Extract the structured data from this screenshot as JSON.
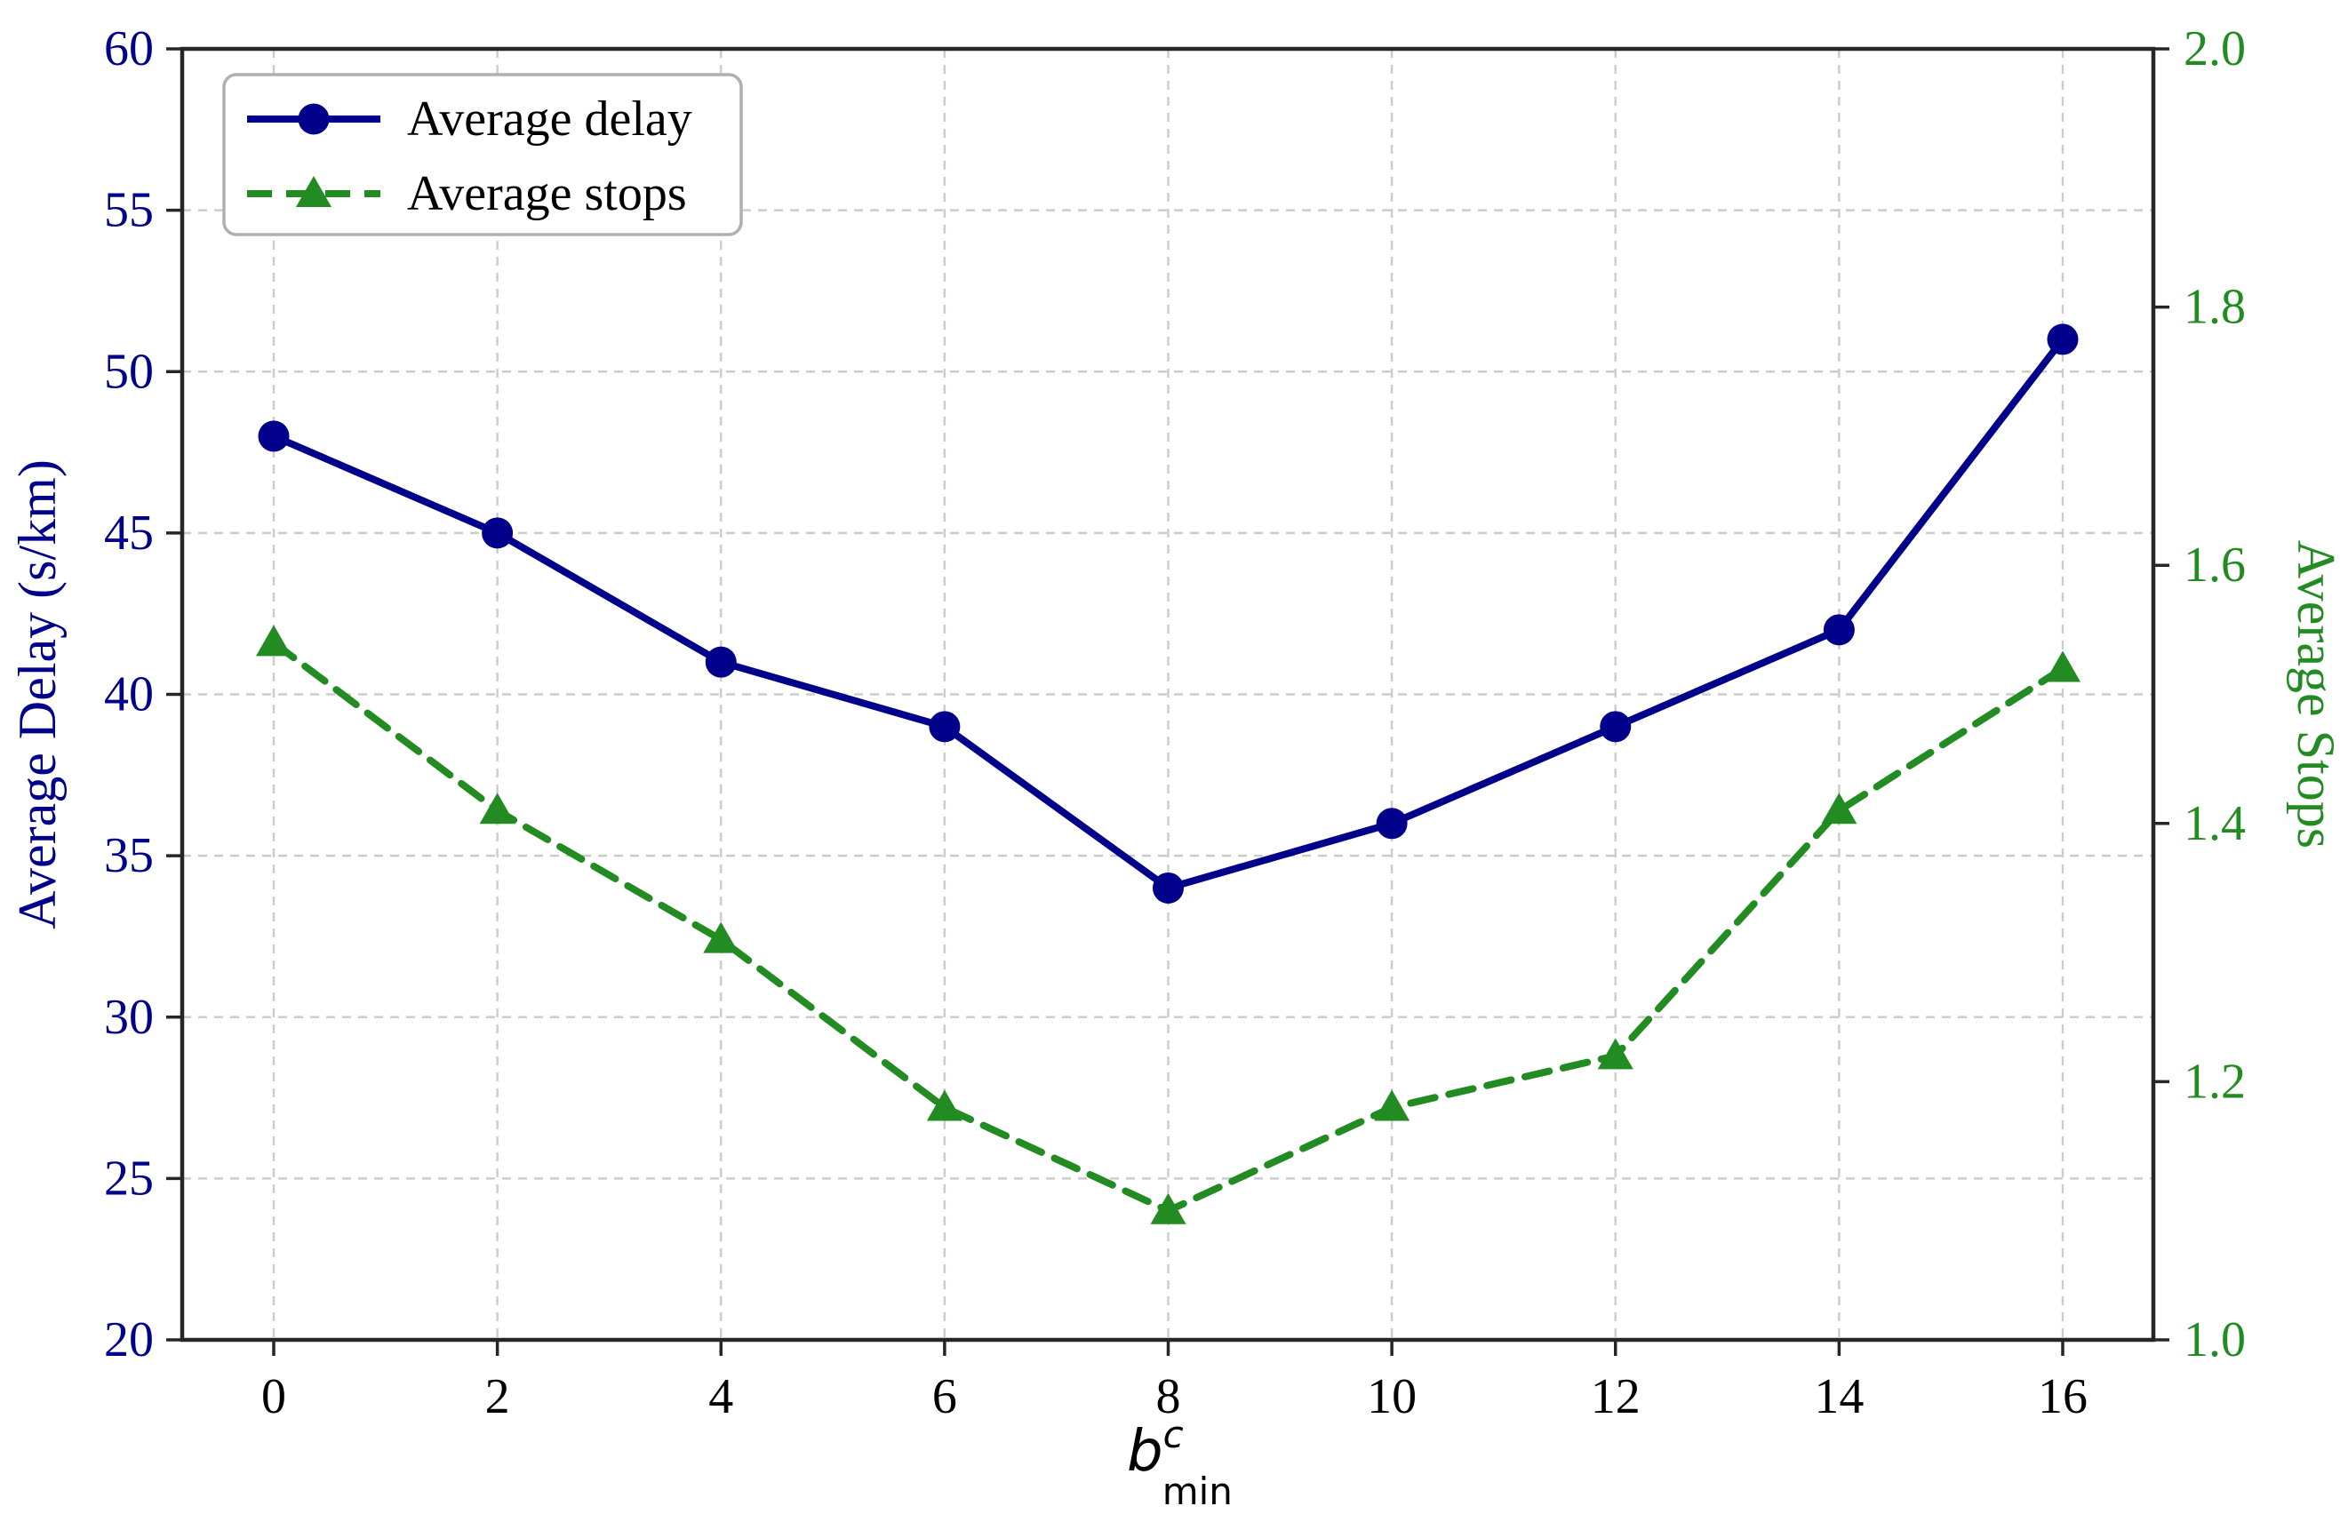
{
  "chart_data": {
    "type": "line",
    "x": [
      0,
      2,
      4,
      6,
      8,
      10,
      12,
      14,
      16
    ],
    "xticks": [
      "0",
      "2",
      "4",
      "6",
      "8",
      "10",
      "12",
      "14",
      "16"
    ],
    "series": [
      {
        "name": "Average delay",
        "axis": "left",
        "values": [
          48,
          45,
          41,
          39,
          34,
          36,
          39,
          42,
          51
        ],
        "color": "#00008B",
        "line_style": "solid",
        "marker": "circle"
      },
      {
        "name": "Average stops",
        "axis": "right",
        "values": [
          1.54,
          1.41,
          1.31,
          1.18,
          1.1,
          1.18,
          1.22,
          1.41,
          1.52
        ],
        "color": "#228B22",
        "line_style": "dashed",
        "marker": "triangle"
      }
    ],
    "xlabel_math": {
      "base": "b",
      "sup": "c",
      "sub": "min"
    },
    "ylabel_left": "Average Delay (s/km)",
    "ylabel_right": "Average Stops",
    "ylim_left": [
      20,
      60
    ],
    "ylim_right": [
      1.0,
      2.0
    ],
    "yticks_left": [
      "20",
      "25",
      "30",
      "35",
      "40",
      "45",
      "50",
      "55",
      "60"
    ],
    "yticks_left_values": [
      20,
      25,
      30,
      35,
      40,
      45,
      50,
      55,
      60
    ],
    "yticks_right": [
      "1.0",
      "1.2",
      "1.4",
      "1.6",
      "1.8",
      "2.0"
    ],
    "yticks_right_values": [
      1.0,
      1.2,
      1.4,
      1.6,
      1.8,
      2.0
    ],
    "grid": true,
    "legend_position": "upper-left",
    "legend_items": [
      "Average delay",
      "Average stops"
    ],
    "colors": {
      "left_axis_text": "#00008B",
      "right_axis_text": "#228B22",
      "x_axis_text": "#000000",
      "gridline": "#cccccc",
      "spine": "#262626",
      "legend_border": "#b0b0b0",
      "background": "#ffffff"
    }
  }
}
